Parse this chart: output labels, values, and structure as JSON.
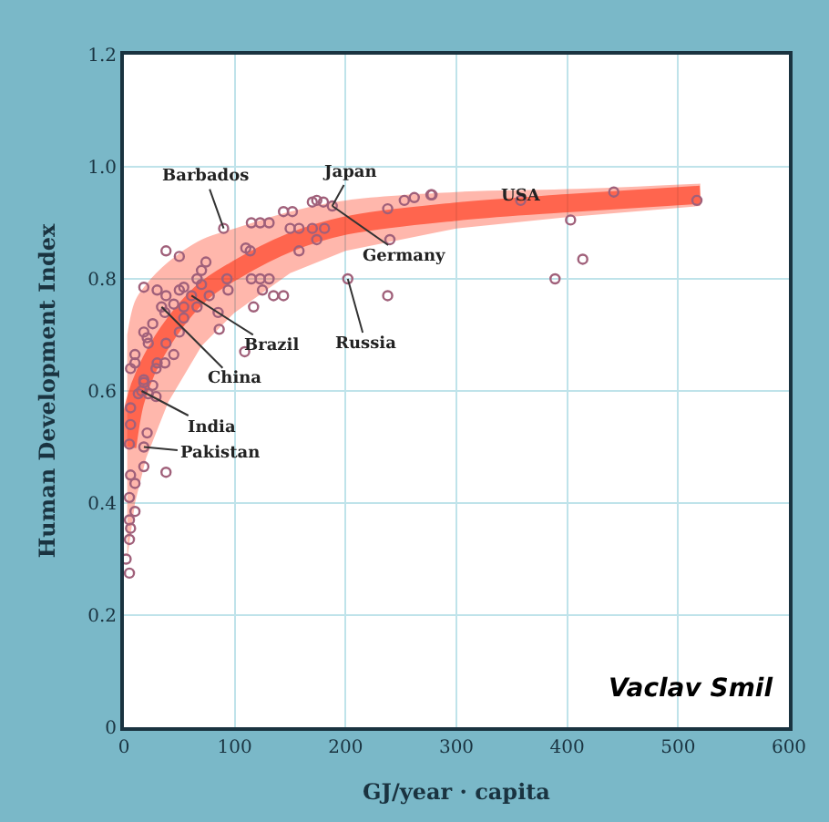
{
  "chart_data": {
    "type": "scatter",
    "xlabel": "GJ/year · capita",
    "ylabel": "Human Development Index",
    "xlim": [
      0,
      600
    ],
    "xticks": [
      0,
      100,
      200,
      300,
      400,
      500,
      600
    ],
    "ylim": [
      0,
      1.2
    ],
    "yticks": [
      0,
      0.2,
      0.4,
      0.6,
      0.8,
      {
        "value": 1.0,
        "label": "1.0"
      },
      1.2
    ],
    "grid": true,
    "marker": "circle",
    "series": [
      {
        "type": "line",
        "marker": "none",
        "color": "#ff3010",
        "x": [
          3,
          10,
          20,
          40,
          70,
          100,
          150,
          200,
          300,
          400,
          520
        ],
        "values": [
          0.5,
          0.58,
          0.635,
          0.705,
          0.775,
          0.815,
          0.865,
          0.895,
          0.92,
          0.935,
          0.95
        ],
        "lower": [
          0.3,
          0.4,
          0.48,
          0.58,
          0.68,
          0.74,
          0.81,
          0.85,
          0.89,
          0.91,
          0.93
        ],
        "upper": [
          0.7,
          0.76,
          0.79,
          0.83,
          0.87,
          0.89,
          0.92,
          0.94,
          0.955,
          0.96,
          0.97
        ]
      },
      {
        "color": "#a0607a",
        "x": [
          170,
          174,
          180,
          188,
          144,
          152,
          115,
          123,
          131,
          90,
          150,
          158,
          170,
          181,
          38,
          50,
          110,
          114,
          158,
          174,
          240,
          238,
          253,
          262,
          277,
          115,
          123,
          131,
          125,
          135,
          144,
          93,
          94,
          202,
          238,
          117,
          85,
          86,
          109,
          61,
          34,
          18,
          30,
          38,
          50,
          54,
          66,
          70,
          77,
          45,
          54,
          66,
          74,
          70,
          37,
          26,
          18,
          10,
          21,
          22,
          38,
          45,
          29,
          18,
          37,
          50,
          54,
          6,
          10,
          30,
          18,
          13,
          22,
          29,
          26,
          16,
          6,
          6,
          21,
          5,
          18,
          18,
          38,
          6,
          10,
          5,
          10,
          5,
          6,
          5,
          2,
          5,
          278,
          358,
          442,
          517,
          403,
          414,
          389
        ],
        "values": [
          0.937,
          0.94,
          0.937,
          0.93,
          0.92,
          0.92,
          0.9,
          0.9,
          0.9,
          0.89,
          0.89,
          0.89,
          0.89,
          0.89,
          0.85,
          0.84,
          0.855,
          0.85,
          0.85,
          0.87,
          0.87,
          0.925,
          0.94,
          0.945,
          0.95,
          0.8,
          0.8,
          0.8,
          0.78,
          0.77,
          0.77,
          0.8,
          0.78,
          0.8,
          0.77,
          0.75,
          0.74,
          0.71,
          0.67,
          0.77,
          0.75,
          0.785,
          0.78,
          0.77,
          0.78,
          0.785,
          0.8,
          0.79,
          0.77,
          0.755,
          0.75,
          0.75,
          0.83,
          0.815,
          0.74,
          0.72,
          0.705,
          0.665,
          0.695,
          0.685,
          0.685,
          0.665,
          0.64,
          0.62,
          0.65,
          0.705,
          0.73,
          0.64,
          0.65,
          0.65,
          0.615,
          0.595,
          0.595,
          0.59,
          0.61,
          0.6,
          0.57,
          0.54,
          0.525,
          0.505,
          0.5,
          0.465,
          0.455,
          0.45,
          0.435,
          0.41,
          0.385,
          0.37,
          0.355,
          0.335,
          0.3,
          0.275,
          0.95,
          0.94,
          0.955,
          0.94,
          0.905,
          0.835,
          0.8
        ]
      }
    ],
    "annotations": [
      {
        "text": "Barbados",
        "x": 90,
        "y": 0.89
      },
      {
        "text": "Japan",
        "x": 188,
        "y": 0.93
      },
      {
        "text": "Germany",
        "x": 188,
        "y": 0.93
      },
      {
        "text": "Russia",
        "x": 202,
        "y": 0.8
      },
      {
        "text": "Brazil",
        "x": 61,
        "y": 0.77
      },
      {
        "text": "China",
        "x": 34,
        "y": 0.75
      },
      {
        "text": "India",
        "x": 16,
        "y": 0.6
      },
      {
        "text": "Pakistan",
        "x": 18,
        "y": 0.5
      },
      {
        "text": "USA",
        "x": 358,
        "y": 0.94
      },
      "Vaclav Smil"
    ]
  }
}
